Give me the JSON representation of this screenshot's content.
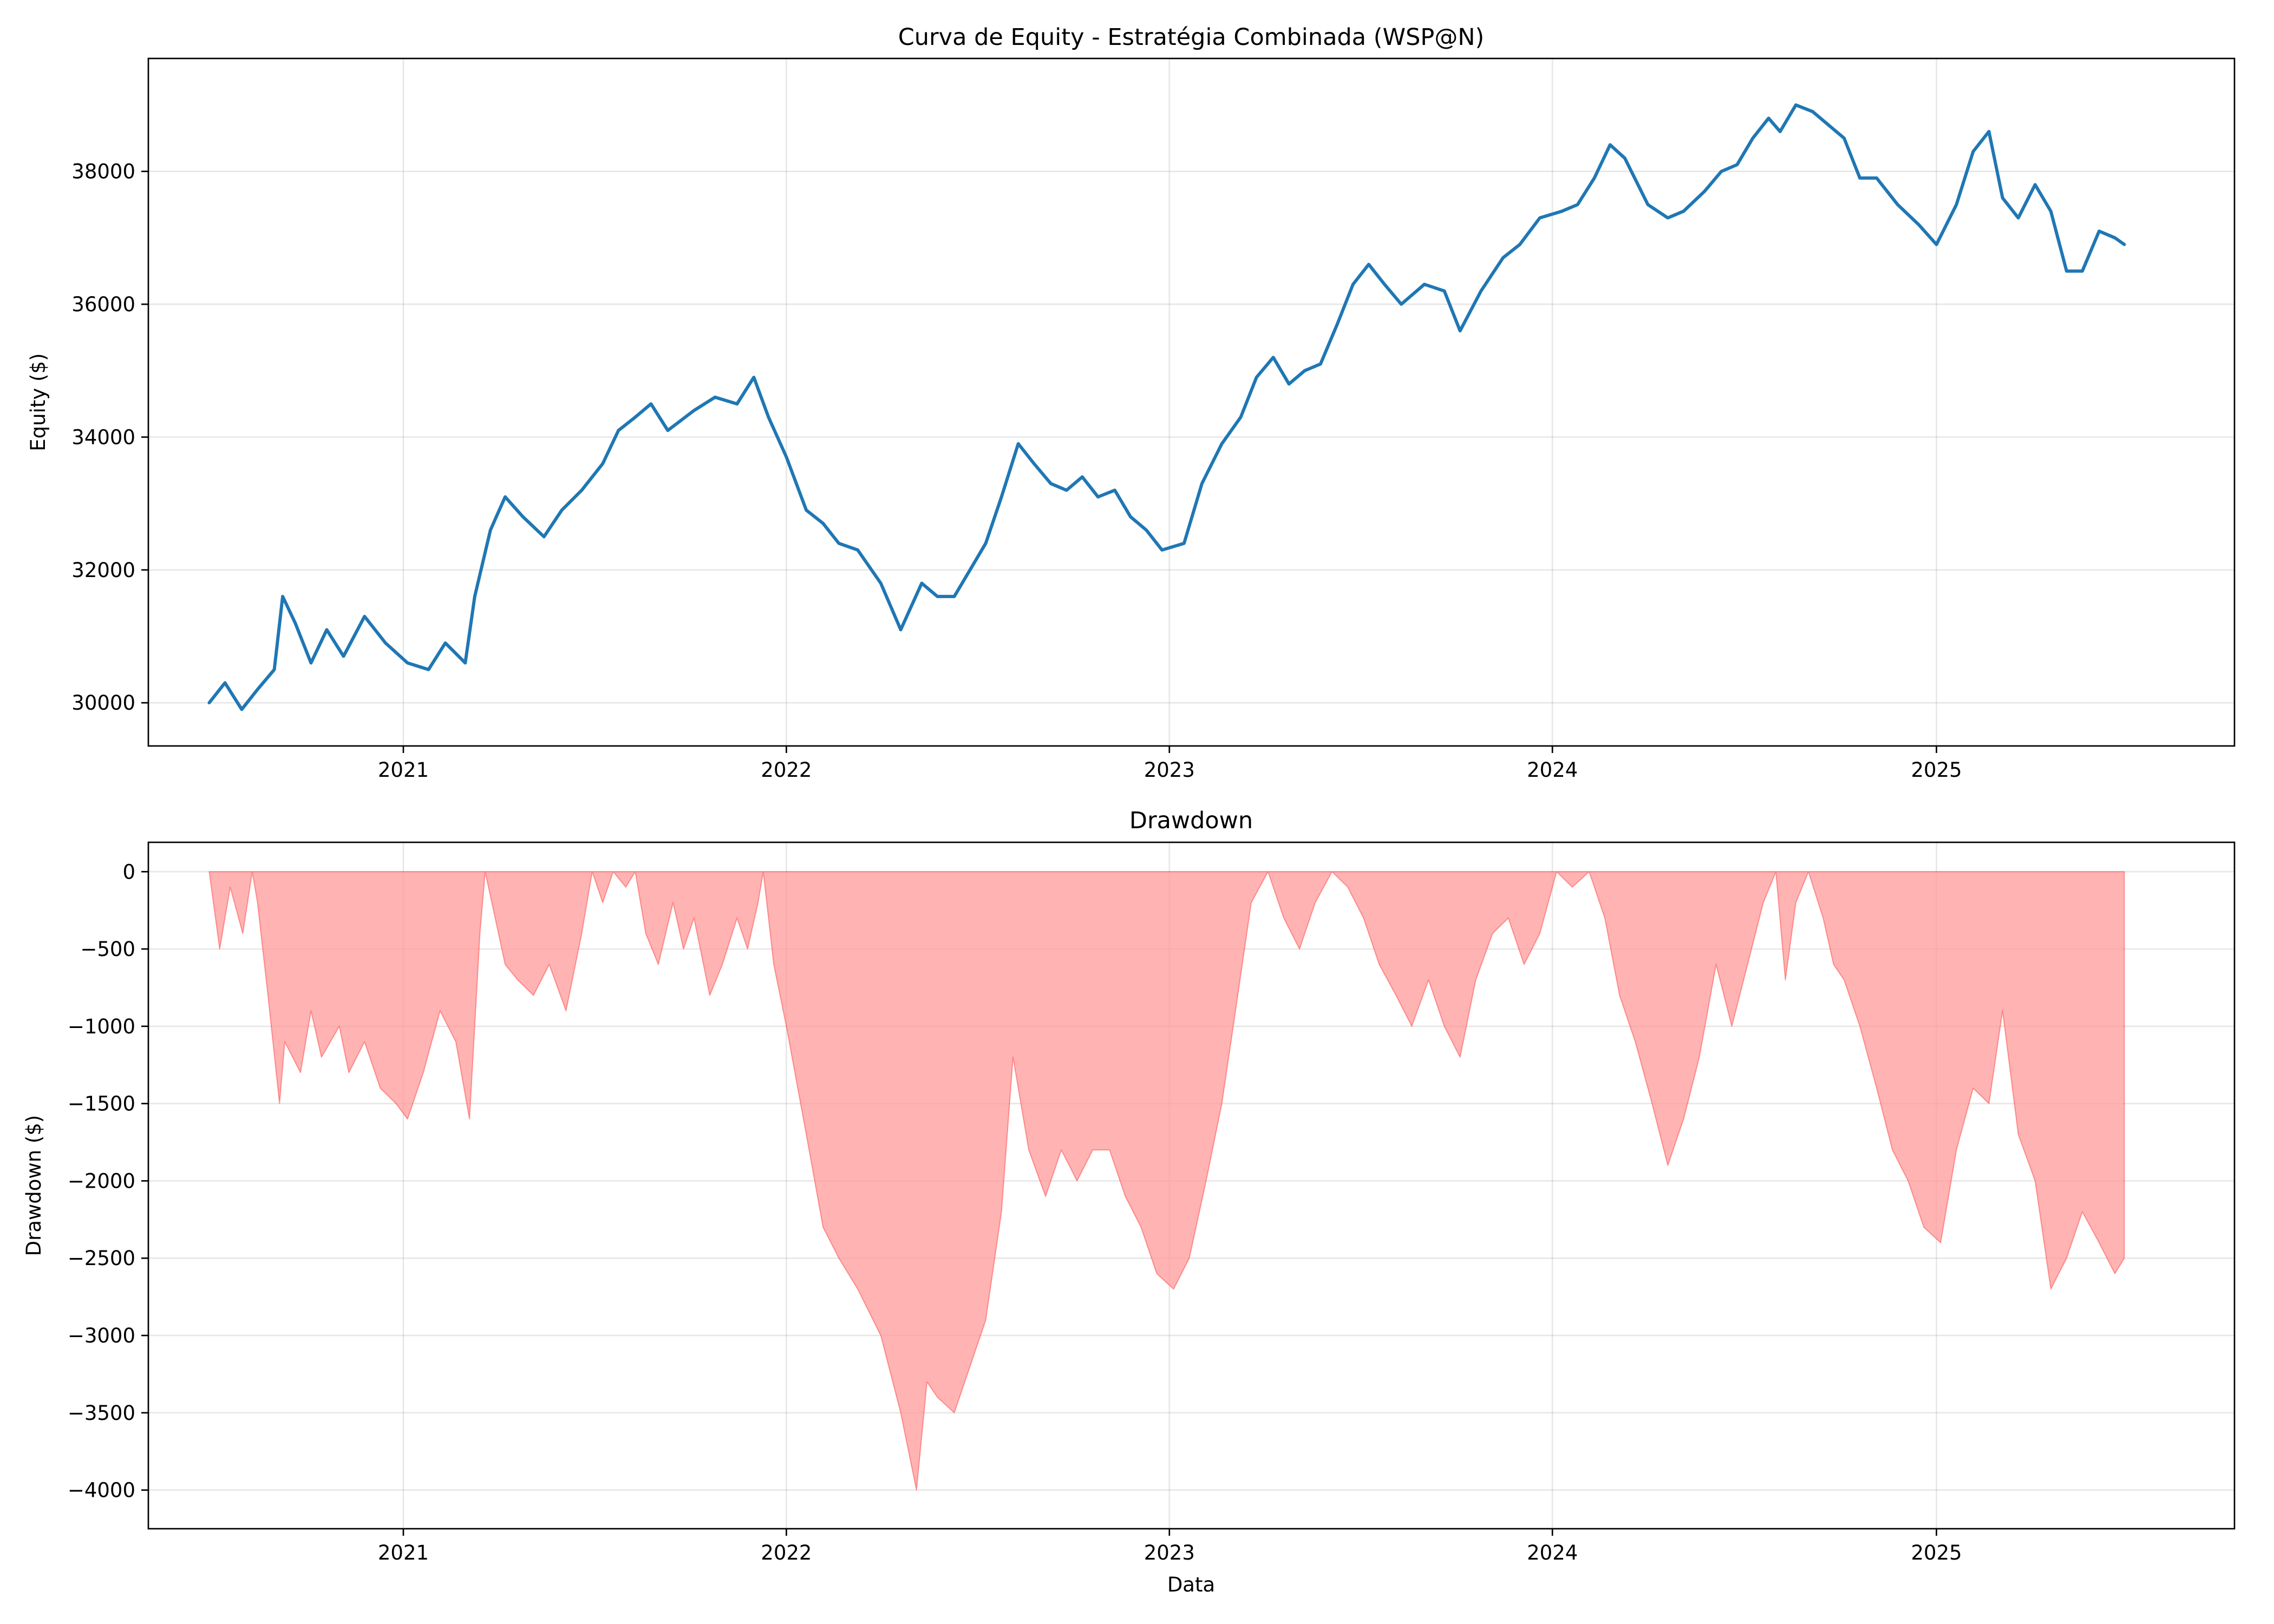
{
  "chart_data": [
    {
      "type": "line",
      "title": "Curva de Equity - Estratégia Combinada (WSP@N)",
      "xlabel": "",
      "ylabel": "Equity ($)",
      "x_ticks": [
        "2021",
        "2022",
        "2023",
        "2024",
        "2025"
      ],
      "y_ticks": [
        "30000",
        "32000",
        "34000",
        "36000",
        "38000"
      ],
      "xlim": [
        "2020-05-03",
        "2025-10-12"
      ],
      "ylim": [
        29350,
        39700
      ],
      "grid": true,
      "series": [
        {
          "color": "#1f77b4",
          "x": [
            "2020-06-30",
            "2020-07-15",
            "2020-07-31",
            "2020-08-15",
            "2020-08-31",
            "2020-09-08",
            "2020-09-20",
            "2020-10-05",
            "2020-10-20",
            "2020-11-05",
            "2020-11-25",
            "2020-12-15",
            "2021-01-05",
            "2021-01-25",
            "2021-02-10",
            "2021-03-01",
            "2021-03-10",
            "2021-03-25",
            "2021-04-08",
            "2021-04-25",
            "2021-05-15",
            "2021-06-01",
            "2021-06-20",
            "2021-07-10",
            "2021-07-25",
            "2021-08-10",
            "2021-08-25",
            "2021-09-10",
            "2021-10-05",
            "2021-10-25",
            "2021-11-15",
            "2021-12-01",
            "2021-12-15",
            "2022-01-01",
            "2022-01-20",
            "2022-02-05",
            "2022-02-20",
            "2022-03-10",
            "2022-04-01",
            "2022-04-20",
            "2022-05-10",
            "2022-05-25",
            "2022-06-10",
            "2022-06-25",
            "2022-07-10",
            "2022-07-25",
            "2022-08-10",
            "2022-08-25",
            "2022-09-10",
            "2022-09-25",
            "2022-10-10",
            "2022-10-25",
            "2022-11-10",
            "2022-11-25",
            "2022-12-10",
            "2022-12-25",
            "2023-01-15",
            "2023-02-01",
            "2023-02-20",
            "2023-03-10",
            "2023-03-25",
            "2023-04-10",
            "2023-04-25",
            "2023-05-10",
            "2023-05-25",
            "2023-06-10",
            "2023-06-25",
            "2023-07-10",
            "2023-07-25",
            "2023-08-10",
            "2023-09-01",
            "2023-09-20",
            "2023-10-05",
            "2023-10-25",
            "2023-11-15",
            "2023-12-01",
            "2023-12-20",
            "2024-01-10",
            "2024-01-25",
            "2024-02-10",
            "2024-02-25",
            "2024-03-10",
            "2024-04-01",
            "2024-04-20",
            "2024-05-05",
            "2024-05-25",
            "2024-06-10",
            "2024-06-25",
            "2024-07-10",
            "2024-07-25",
            "2024-08-05",
            "2024-08-20",
            "2024-09-05",
            "2024-09-20",
            "2024-10-05",
            "2024-10-20",
            "2024-11-05",
            "2024-11-25",
            "2024-12-15",
            "2025-01-01",
            "2025-01-20",
            "2025-02-05",
            "2025-02-20",
            "2025-03-05",
            "2025-03-20",
            "2025-04-05",
            "2025-04-20",
            "2025-05-05",
            "2025-05-20",
            "2025-06-05",
            "2025-06-20",
            "2025-06-29"
          ],
          "values": [
            30000,
            30300,
            29900,
            30200,
            30500,
            31600,
            31200,
            30600,
            31100,
            30700,
            31300,
            30900,
            30600,
            30500,
            30900,
            30600,
            31600,
            32600,
            33100,
            32800,
            32500,
            32900,
            33200,
            33600,
            34100,
            34300,
            34500,
            34100,
            34400,
            34600,
            34500,
            34900,
            34300,
            33700,
            32900,
            32700,
            32400,
            32300,
            31800,
            31100,
            31800,
            31600,
            31600,
            32000,
            32400,
            33100,
            33900,
            33600,
            33300,
            33200,
            33400,
            33100,
            33200,
            32800,
            32600,
            32300,
            32400,
            33300,
            33900,
            34300,
            34900,
            35200,
            34800,
            35000,
            35100,
            35700,
            36300,
            36600,
            36300,
            36000,
            36300,
            36200,
            35600,
            36200,
            36700,
            36900,
            37300,
            37400,
            37500,
            37900,
            38400,
            38200,
            37500,
            37300,
            37400,
            37700,
            38000,
            38100,
            38500,
            38800,
            38600,
            39000,
            38900,
            38700,
            38500,
            37900,
            37900,
            37500,
            37200,
            36900,
            37500,
            38300,
            38600,
            37600,
            37300,
            37800,
            37400,
            36500,
            36500,
            37100,
            37000,
            36900
          ]
        }
      ]
    },
    {
      "type": "area",
      "title": "Drawdown",
      "xlabel": "Data",
      "ylabel": "Drawdown ($)",
      "x_ticks": [
        "2021",
        "2022",
        "2023",
        "2024",
        "2025"
      ],
      "y_ticks": [
        "0",
        "−500",
        "−1000",
        "−1500",
        "−2000",
        "−2500",
        "−3000",
        "−3500",
        "−4000"
      ],
      "xlim": [
        "2020-05-03",
        "2025-10-12"
      ],
      "ylim": [
        -4250,
        190
      ],
      "grid": true,
      "series": [
        {
          "color": "#ff0000",
          "fill_color": "#ff9999",
          "x": [
            "2020-06-30",
            "2020-07-10",
            "2020-07-20",
            "2020-08-01",
            "2020-08-10",
            "2020-08-15",
            "2020-08-25",
            "2020-09-05",
            "2020-09-10",
            "2020-09-25",
            "2020-10-05",
            "2020-10-15",
            "2020-11-01",
            "2020-11-10",
            "2020-11-25",
            "2020-12-10",
            "2020-12-25",
            "2021-01-05",
            "2021-01-20",
            "2021-02-05",
            "2021-02-20",
            "2021-03-05",
            "2021-03-15",
            "2021-03-20",
            "2021-04-08",
            "2021-04-20",
            "2021-05-05",
            "2021-05-20",
            "2021-06-05",
            "2021-06-20",
            "2021-06-30",
            "2021-07-10",
            "2021-07-20",
            "2021-08-01",
            "2021-08-10",
            "2021-08-20",
            "2021-09-01",
            "2021-09-15",
            "2021-09-25",
            "2021-10-05",
            "2021-10-20",
            "2021-11-01",
            "2021-11-15",
            "2021-11-25",
            "2021-12-05",
            "2021-12-10",
            "2021-12-20",
            "2022-01-01",
            "2022-01-20",
            "2022-02-05",
            "2022-02-20",
            "2022-03-10",
            "2022-04-01",
            "2022-04-20",
            "2022-05-05",
            "2022-05-15",
            "2022-05-25",
            "2022-06-10",
            "2022-06-25",
            "2022-07-10",
            "2022-07-25",
            "2022-08-05",
            "2022-08-20",
            "2022-09-05",
            "2022-09-20",
            "2022-10-05",
            "2022-10-20",
            "2022-11-05",
            "2022-11-20",
            "2022-12-05",
            "2022-12-20",
            "2023-01-05",
            "2023-01-20",
            "2023-02-05",
            "2023-02-20",
            "2023-03-05",
            "2023-03-20",
            "2023-04-05",
            "2023-04-20",
            "2023-05-05",
            "2023-05-20",
            "2023-06-05",
            "2023-06-20",
            "2023-07-05",
            "2023-07-20",
            "2023-08-05",
            "2023-08-20",
            "2023-09-05",
            "2023-09-20",
            "2023-10-05",
            "2023-10-20",
            "2023-11-05",
            "2023-11-20",
            "2023-12-05",
            "2023-12-20",
            "2024-01-05",
            "2024-01-20",
            "2024-02-05",
            "2024-02-20",
            "2024-03-05",
            "2024-03-20",
            "2024-04-05",
            "2024-04-20",
            "2024-05-05",
            "2024-05-20",
            "2024-06-05",
            "2024-06-20",
            "2024-07-05",
            "2024-07-20",
            "2024-08-01",
            "2024-08-10",
            "2024-08-20",
            "2024-09-01",
            "2024-09-15",
            "2024-09-25",
            "2024-10-05",
            "2024-10-20",
            "2024-11-05",
            "2024-11-20",
            "2024-12-05",
            "2024-12-20",
            "2025-01-05",
            "2025-01-20",
            "2025-02-05",
            "2025-02-20",
            "2025-03-05",
            "2025-03-20",
            "2025-04-05",
            "2025-04-20",
            "2025-05-05",
            "2025-05-20",
            "2025-06-05",
            "2025-06-20",
            "2025-06-29"
          ],
          "values": [
            0,
            -500,
            -100,
            -400,
            0,
            -200,
            -800,
            -1500,
            -1100,
            -1300,
            -900,
            -1200,
            -1000,
            -1300,
            -1100,
            -1400,
            -1500,
            -1600,
            -1300,
            -900,
            -1100,
            -1600,
            -400,
            0,
            -600,
            -700,
            -800,
            -600,
            -900,
            -400,
            0,
            -200,
            0,
            -100,
            0,
            -400,
            -600,
            -200,
            -500,
            -300,
            -800,
            -600,
            -300,
            -500,
            -200,
            0,
            -600,
            -1000,
            -1700,
            -2300,
            -2500,
            -2700,
            -3000,
            -3500,
            -4000,
            -3300,
            -3400,
            -3500,
            -3200,
            -2900,
            -2200,
            -1200,
            -1800,
            -2100,
            -1800,
            -2000,
            -1800,
            -1800,
            -2100,
            -2300,
            -2600,
            -2700,
            -2500,
            -2000,
            -1500,
            -900,
            -200,
            0,
            -300,
            -500,
            -200,
            0,
            -100,
            -300,
            -600,
            -800,
            -1000,
            -700,
            -1000,
            -1200,
            -700,
            -400,
            -300,
            -600,
            -400,
            0,
            -100,
            0,
            -300,
            -800,
            -1100,
            -1500,
            -1900,
            -1600,
            -1200,
            -600,
            -1000,
            -600,
            -200,
            0,
            -700,
            -200,
            0,
            -300,
            -600,
            -700,
            -1000,
            -1400,
            -1800,
            -2000,
            -2300,
            -2400,
            -1800,
            -1400,
            -1500,
            -900,
            -1700,
            -2000,
            -2700,
            -2500,
            -2200,
            -2400,
            -2600,
            -2500
          ]
        }
      ]
    }
  ]
}
